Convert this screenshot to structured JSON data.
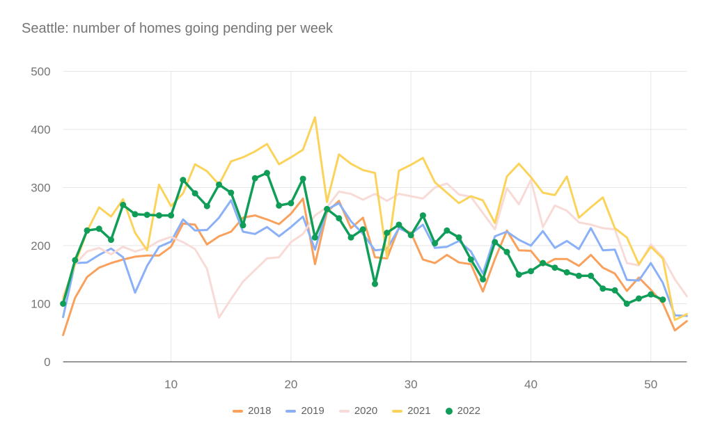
{
  "title": "Seattle: number of homes going pending per week",
  "chart_data": {
    "type": "line",
    "x_axis": {
      "label": "",
      "min": 1,
      "max": 53,
      "ticks": [
        10,
        20,
        30,
        40,
        50
      ]
    },
    "y_axis": {
      "label": "",
      "min": 0,
      "max": 500,
      "ticks": [
        0,
        100,
        200,
        300,
        400,
        500
      ]
    },
    "grid": true,
    "legend_position": "bottom",
    "series": [
      {
        "name": "2018",
        "color": "#F9A15C",
        "marker": "line",
        "values": [
          46,
          110,
          146,
          162,
          170,
          176,
          181,
          183,
          183,
          198,
          238,
          236,
          202,
          216,
          224,
          248,
          252,
          245,
          237,
          255,
          281,
          168,
          258,
          277,
          230,
          248,
          180,
          178,
          231,
          222,
          176,
          170,
          184,
          171,
          168,
          121,
          177,
          226,
          192,
          191,
          166,
          177,
          177,
          165,
          184,
          162,
          152,
          122,
          145,
          124,
          101,
          54,
          70
        ]
      },
      {
        "name": "2019",
        "color": "#8AB0F8",
        "marker": "line",
        "values": [
          77,
          170,
          171,
          184,
          195,
          180,
          119,
          165,
          198,
          207,
          245,
          226,
          227,
          248,
          278,
          224,
          220,
          232,
          216,
          232,
          250,
          193,
          262,
          273,
          242,
          220,
          192,
          194,
          230,
          220,
          236,
          196,
          198,
          208,
          190,
          152,
          216,
          224,
          210,
          200,
          225,
          196,
          208,
          194,
          230,
          192,
          193,
          141,
          140,
          170,
          136,
          80,
          79
        ]
      },
      {
        "name": "2020",
        "color": "#F8DAD6",
        "marker": "line",
        "values": [
          112,
          168,
          190,
          196,
          185,
          198,
          190,
          196,
          208,
          215,
          206,
          194,
          160,
          76,
          108,
          138,
          158,
          178,
          180,
          206,
          220,
          252,
          266,
          293,
          289,
          279,
          289,
          277,
          289,
          285,
          281,
          300,
          307,
          288,
          284,
          256,
          228,
          299,
          271,
          313,
          232,
          269,
          260,
          240,
          236,
          230,
          228,
          170,
          166,
          202,
          180,
          142,
          113
        ]
      },
      {
        "name": "2021",
        "color": "#FBD35B",
        "marker": "line",
        "values": [
          108,
          168,
          225,
          266,
          250,
          280,
          222,
          192,
          305,
          268,
          290,
          340,
          328,
          305,
          345,
          352,
          362,
          375,
          340,
          352,
          365,
          421,
          275,
          357,
          341,
          330,
          325,
          180,
          329,
          339,
          351,
          309,
          291,
          273,
          285,
          278,
          239,
          319,
          341,
          318,
          291,
          287,
          319,
          248,
          266,
          283,
          230,
          214,
          168,
          198,
          178,
          72,
          82
        ]
      },
      {
        "name": "2022",
        "color": "#0F9D58",
        "marker": "circle",
        "values": [
          100,
          175,
          226,
          229,
          210,
          270,
          254,
          253,
          252,
          252,
          313,
          290,
          268,
          305,
          291,
          235,
          316,
          325,
          269,
          273,
          315,
          214,
          263,
          247,
          214,
          228,
          134,
          222,
          236,
          218,
          252,
          204,
          226,
          214,
          176,
          142,
          206,
          189,
          150,
          156,
          170,
          162,
          154,
          148,
          148,
          126,
          123,
          100,
          109,
          116,
          107
        ]
      }
    ]
  },
  "colors": {
    "background": "#FFFFFF",
    "title_text": "#757575",
    "axis_text": "#757575",
    "gridline": "#E6E6E6",
    "axis_line": "#757575",
    "legend_text": "#616161"
  }
}
